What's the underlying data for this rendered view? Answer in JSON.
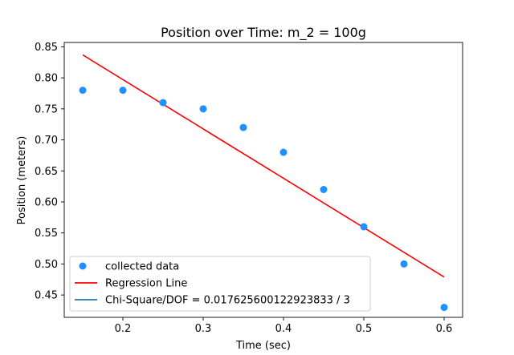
{
  "chart_data": {
    "type": "scatter",
    "title": "Position over Time: m_2 = 100g",
    "xlabel": "Time (sec)",
    "ylabel": "Position (meters)",
    "xlim": [
      0.127,
      0.623
    ],
    "ylim": [
      0.414,
      0.857
    ],
    "x_ticks": [
      0.2,
      0.3,
      0.4,
      0.5,
      0.6
    ],
    "y_ticks": [
      0.45,
      0.5,
      0.55,
      0.6,
      0.65,
      0.7,
      0.75,
      0.8,
      0.85
    ],
    "grid": false,
    "legend_position": "lower-left",
    "series": [
      {
        "name": "collected data",
        "kind": "scatter",
        "color": "#1e90ff",
        "x": [
          0.15,
          0.2,
          0.25,
          0.3,
          0.35,
          0.4,
          0.45,
          0.5,
          0.55,
          0.6
        ],
        "y": [
          0.78,
          0.78,
          0.76,
          0.75,
          0.72,
          0.68,
          0.62,
          0.56,
          0.5,
          0.43
        ]
      },
      {
        "name": "Regression Line",
        "kind": "line",
        "color": "#ff0000",
        "x": [
          0.15,
          0.6
        ],
        "y": [
          0.837,
          0.479
        ]
      },
      {
        "name": "Chi-Square/DOF = 0.017625600122923833 / 3",
        "kind": "legend-only",
        "color": "#1f77b4"
      }
    ]
  }
}
